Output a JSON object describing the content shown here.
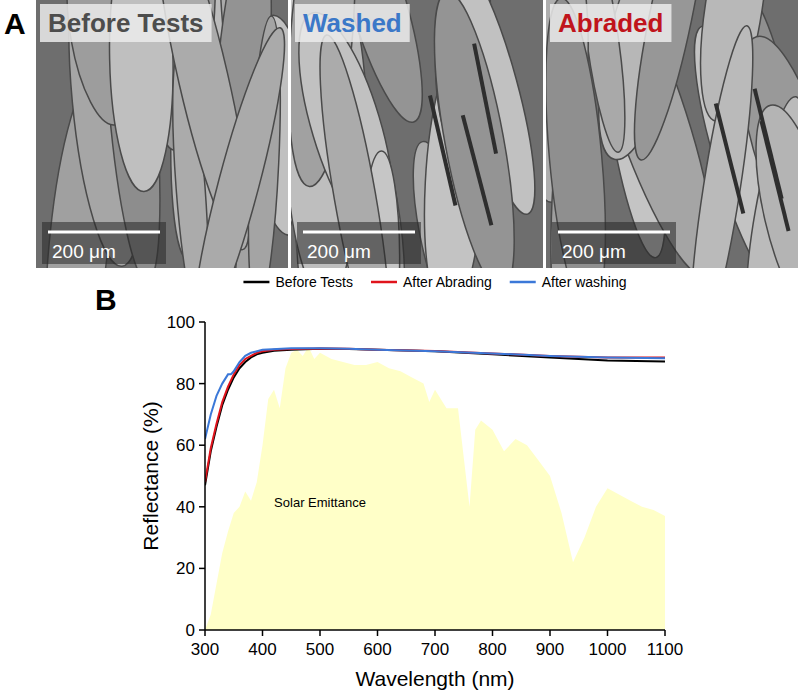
{
  "panel_a": {
    "panel_label": "A",
    "images": [
      {
        "label": "Before Tests",
        "color": "#4d4d4d",
        "scale_bar": "200 μm"
      },
      {
        "label": "Washed",
        "color": "#3b78c8",
        "scale_bar": "200 μm"
      },
      {
        "label": "Abraded",
        "color": "#c0141c",
        "scale_bar": "200 μm"
      }
    ]
  },
  "chart_data": {
    "panel_label": "B",
    "type": "line",
    "x_label": "Wavelength (nm)",
    "y_label": "Reflectance (%)",
    "xlim": [
      300,
      1100
    ],
    "xticks": [
      300,
      400,
      500,
      600,
      700,
      800,
      900,
      1000,
      1100
    ],
    "ylim": [
      0,
      100
    ],
    "yticks": [
      0,
      20,
      40,
      60,
      80,
      100
    ],
    "legend": "top",
    "series": [
      {
        "name": "Solar Emittance",
        "type": "area",
        "color": "#ffffc8",
        "x": [
          300,
          310,
          320,
          330,
          340,
          350,
          360,
          370,
          380,
          390,
          400,
          410,
          420,
          430,
          440,
          450,
          460,
          470,
          480,
          490,
          500,
          520,
          540,
          560,
          580,
          600,
          620,
          640,
          660,
          680,
          690,
          700,
          720,
          740,
          760,
          770,
          780,
          800,
          820,
          840,
          860,
          880,
          900,
          920,
          940,
          960,
          980,
          1000,
          1020,
          1040,
          1060,
          1080,
          1100
        ],
        "values": [
          0,
          5,
          15,
          25,
          32,
          38,
          40,
          45,
          42,
          48,
          60,
          75,
          78,
          72,
          85,
          90,
          91,
          89,
          92,
          88,
          90,
          88,
          87,
          86,
          86,
          87,
          85,
          84,
          82,
          80,
          74,
          78,
          72,
          72,
          40,
          65,
          68,
          65,
          58,
          62,
          60,
          55,
          50,
          38,
          22,
          30,
          40,
          46,
          44,
          42,
          40,
          39,
          37
        ]
      },
      {
        "name": "Before Tests",
        "type": "line",
        "color": "#000000",
        "x": [
          300,
          310,
          320,
          330,
          340,
          350,
          360,
          370,
          380,
          390,
          400,
          420,
          450,
          500,
          550,
          600,
          700,
          800,
          900,
          1000,
          1100
        ],
        "values": [
          47,
          58,
          66,
          73,
          78,
          82,
          85,
          87,
          88.5,
          89.5,
          90,
          90.7,
          91,
          91.3,
          91.2,
          91,
          90.5,
          89.5,
          88.5,
          87.5,
          87.2
        ]
      },
      {
        "name": "After Abrading",
        "type": "line",
        "color": "#e0141c",
        "x": [
          300,
          310,
          320,
          330,
          340,
          350,
          360,
          370,
          380,
          390,
          400,
          420,
          450,
          500,
          550,
          600,
          700,
          800,
          900,
          1000,
          1100
        ],
        "values": [
          48,
          59,
          67,
          74,
          79,
          83,
          86,
          88,
          89,
          90,
          90.5,
          91,
          91.2,
          91.4,
          91.3,
          91,
          90.6,
          89.8,
          89,
          88.5,
          88.5
        ]
      },
      {
        "name": "After washing",
        "type": "line",
        "color": "#3b78d8",
        "x": [
          300,
          310,
          320,
          330,
          340,
          345,
          350,
          360,
          370,
          380,
          400,
          450,
          500,
          550,
          600,
          700,
          800,
          900,
          1000,
          1100
        ],
        "values": [
          62,
          70,
          76,
          80,
          83,
          83,
          84,
          87,
          89,
          90,
          91,
          91.5,
          91.5,
          91.3,
          91,
          90.5,
          89.8,
          89,
          88.5,
          88.2
        ]
      }
    ]
  }
}
